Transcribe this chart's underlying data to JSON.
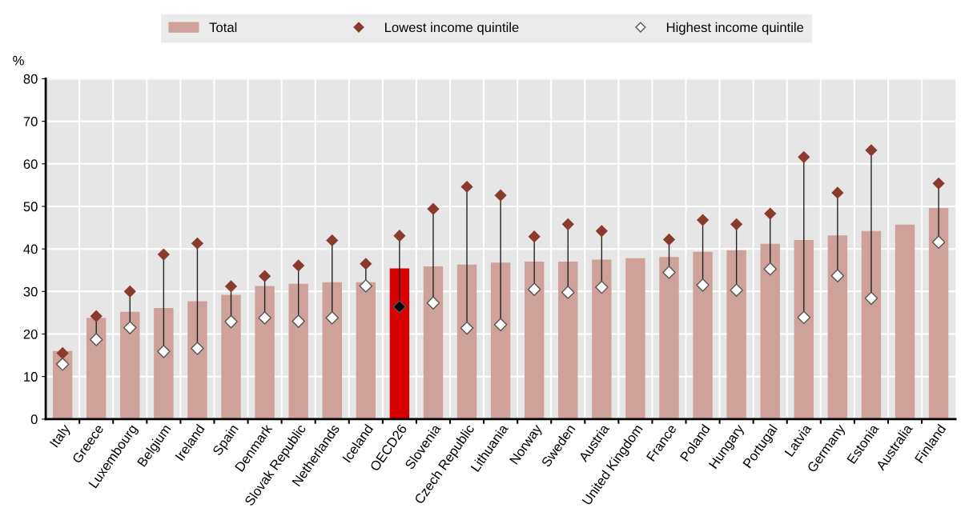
{
  "chart_data": {
    "type": "bar",
    "ylabel": "%",
    "categories": [
      "Italy",
      "Greece",
      "Luxembourg",
      "Belgium",
      "Ireland",
      "Spain",
      "Denmark",
      "Slovak Republic",
      "Netherlands",
      "Iceland",
      "OECD26",
      "Slovenia",
      "Czech Republic",
      "Lithuania",
      "Norway",
      "Sweden",
      "Austria",
      "United Kingdom",
      "France",
      "Poland",
      "Hungary",
      "Portugal",
      "Latvia",
      "Germany",
      "Estonia",
      "Australia",
      "Finland"
    ],
    "series": [
      {
        "name": "Total",
        "color": "#cfa19b",
        "colors": [
          "#cfa19b",
          "#cfa19b",
          "#cfa19b",
          "#cfa19b",
          "#cfa19b",
          "#cfa19b",
          "#cfa19b",
          "#cfa19b",
          "#cfa19b",
          "#cfa19b",
          "#d90000",
          "#cfa19b",
          "#cfa19b",
          "#cfa19b",
          "#cfa19b",
          "#cfa19b",
          "#cfa19b",
          "#cfa19b",
          "#cfa19b",
          "#cfa19b",
          "#cfa19b",
          "#cfa19b",
          "#cfa19b",
          "#cfa19b",
          "#cfa19b",
          "#cfa19b",
          "#cfa19b"
        ],
        "values": [
          16.0,
          23.8,
          25.2,
          26.1,
          27.7,
          29.2,
          31.3,
          31.8,
          32.2,
          32.2,
          35.4,
          35.9,
          36.3,
          36.8,
          37.0,
          37.0,
          37.5,
          37.8,
          38.1,
          39.3,
          39.7,
          41.2,
          42.1,
          43.2,
          44.2,
          45.7,
          49.6
        ]
      },
      {
        "name": "Lowest income quintile",
        "type": "scatter",
        "color": "#8b3a2e",
        "marker": "diamond",
        "values": [
          15.5,
          24.2,
          30.0,
          38.7,
          41.3,
          31.2,
          33.6,
          36.1,
          42.0,
          36.5,
          43.1,
          49.4,
          54.6,
          52.6,
          42.9,
          45.8,
          44.2,
          null,
          42.2,
          46.8,
          45.8,
          48.3,
          61.6,
          53.2,
          63.2,
          null,
          55.4
        ]
      },
      {
        "name": "Highest income quintile",
        "type": "scatter",
        "color": "#ffffff",
        "colors": [
          "#ffffff",
          "#ffffff",
          "#ffffff",
          "#ffffff",
          "#ffffff",
          "#ffffff",
          "#ffffff",
          "#ffffff",
          "#ffffff",
          "#ffffff",
          "#000000",
          "#ffffff",
          "#ffffff",
          "#ffffff",
          "#ffffff",
          "#ffffff",
          "#ffffff",
          "#ffffff",
          "#ffffff",
          "#ffffff",
          "#ffffff",
          "#ffffff",
          "#ffffff",
          "#ffffff",
          "#ffffff",
          "#ffffff",
          "#ffffff"
        ],
        "marker": "diamond",
        "values": [
          12.9,
          18.7,
          21.5,
          15.9,
          16.6,
          22.9,
          23.8,
          23.0,
          23.8,
          31.3,
          26.4,
          27.3,
          21.4,
          22.2,
          30.5,
          29.8,
          31.0,
          null,
          34.5,
          31.5,
          30.3,
          35.3,
          23.9,
          33.7,
          28.4,
          null,
          41.6
        ]
      }
    ],
    "ylim": [
      0,
      80
    ],
    "yticks": [
      0,
      10,
      20,
      30,
      40,
      50,
      60,
      70,
      80
    ],
    "grid": true,
    "legend": "top"
  }
}
